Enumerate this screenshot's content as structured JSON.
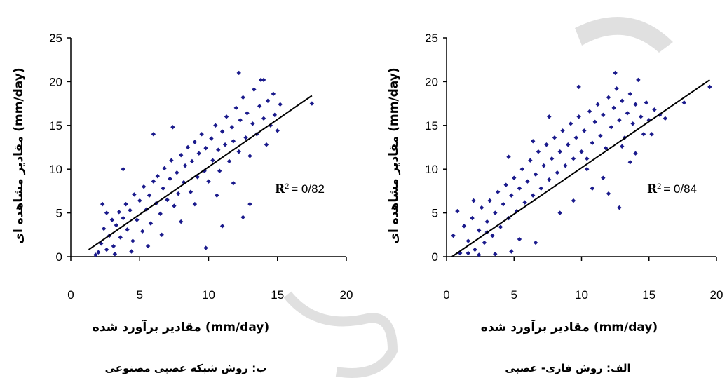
{
  "chart_data": [
    {
      "type": "scatter",
      "caption": "ب: روش شبکه عصبی مصنوعی",
      "xlabel": "مقادیر برآورد شده (mm/day)",
      "ylabel": "مقادیر مشاهده ای (mm/day)",
      "xlim": [
        0,
        20
      ],
      "ylim": [
        0,
        25
      ],
      "x_ticks": [
        "0",
        "5",
        "10",
        "15",
        "20"
      ],
      "y_ticks": [
        "0",
        "5",
        "10",
        "15",
        "20",
        "25"
      ],
      "r2_label": "R",
      "r2_sup": "2",
      "r2_value": "= 0/82",
      "marker_color": "#1a1a8c",
      "trendline": {
        "x": [
          1.3,
          17.5
        ],
        "y": [
          0.8,
          18.4
        ]
      },
      "points": [
        [
          2.0,
          0.5
        ],
        [
          2.2,
          1.5
        ],
        [
          2.4,
          3.2
        ],
        [
          2.6,
          0.8
        ],
        [
          2.8,
          2.4
        ],
        [
          3.0,
          4.2
        ],
        [
          3.1,
          1.2
        ],
        [
          3.3,
          3.6
        ],
        [
          3.5,
          5.1
        ],
        [
          3.6,
          2.2
        ],
        [
          3.8,
          4.4
        ],
        [
          4.0,
          6.0
        ],
        [
          4.1,
          3.1
        ],
        [
          4.3,
          5.3
        ],
        [
          4.5,
          1.8
        ],
        [
          4.6,
          7.1
        ],
        [
          4.8,
          4.2
        ],
        [
          5.0,
          6.4
        ],
        [
          5.2,
          2.9
        ],
        [
          5.3,
          8.0
        ],
        [
          5.5,
          5.4
        ],
        [
          5.7,
          7.0
        ],
        [
          5.8,
          3.8
        ],
        [
          6.0,
          8.6
        ],
        [
          6.2,
          6.1
        ],
        [
          6.3,
          9.2
        ],
        [
          6.5,
          4.9
        ],
        [
          6.7,
          7.8
        ],
        [
          6.8,
          10.1
        ],
        [
          7.0,
          6.5
        ],
        [
          7.2,
          8.9
        ],
        [
          7.3,
          11.0
        ],
        [
          7.5,
          5.8
        ],
        [
          7.7,
          9.6
        ],
        [
          7.8,
          7.2
        ],
        [
          8.0,
          11.6
        ],
        [
          8.2,
          8.5
        ],
        [
          8.3,
          10.4
        ],
        [
          8.5,
          12.5
        ],
        [
          8.7,
          7.4
        ],
        [
          8.8,
          10.9
        ],
        [
          9.0,
          13.1
        ],
        [
          9.2,
          9.1
        ],
        [
          9.3,
          11.8
        ],
        [
          9.5,
          14.0
        ],
        [
          9.7,
          9.8
        ],
        [
          9.8,
          12.4
        ],
        [
          10.0,
          8.6
        ],
        [
          10.2,
          13.5
        ],
        [
          10.3,
          11.0
        ],
        [
          10.5,
          15.0
        ],
        [
          10.7,
          12.2
        ],
        [
          10.8,
          9.8
        ],
        [
          11.0,
          14.3
        ],
        [
          11.2,
          12.8
        ],
        [
          11.3,
          16.0
        ],
        [
          11.5,
          10.9
        ],
        [
          11.7,
          14.8
        ],
        [
          11.8,
          13.2
        ],
        [
          12.0,
          17.0
        ],
        [
          12.2,
          12.0
        ],
        [
          12.3,
          15.6
        ],
        [
          12.5,
          18.2
        ],
        [
          12.7,
          13.6
        ],
        [
          12.8,
          16.4
        ],
        [
          13.0,
          11.5
        ],
        [
          13.2,
          15.2
        ],
        [
          13.3,
          19.1
        ],
        [
          13.5,
          14.0
        ],
        [
          13.7,
          17.2
        ],
        [
          13.8,
          20.2
        ],
        [
          14.0,
          15.8
        ],
        [
          14.2,
          12.8
        ],
        [
          14.3,
          17.8
        ],
        [
          14.5,
          15.0
        ],
        [
          14.7,
          18.6
        ],
        [
          14.8,
          16.2
        ],
        [
          15.0,
          14.4
        ],
        [
          15.2,
          17.4
        ],
        [
          17.5,
          17.5
        ],
        [
          12.2,
          21.0
        ],
        [
          14.0,
          20.2
        ],
        [
          6.0,
          14.0
        ],
        [
          3.8,
          10.0
        ],
        [
          2.3,
          6.0
        ],
        [
          7.4,
          14.8
        ],
        [
          9.8,
          1.0
        ],
        [
          12.5,
          4.5
        ],
        [
          13.0,
          6.0
        ],
        [
          11.0,
          3.5
        ],
        [
          1.8,
          0.2
        ],
        [
          2.6,
          5.0
        ],
        [
          3.2,
          0.3
        ],
        [
          4.4,
          0.6
        ],
        [
          5.6,
          1.2
        ],
        [
          6.6,
          2.5
        ],
        [
          8.0,
          4.0
        ],
        [
          9.0,
          6.0
        ],
        [
          10.6,
          7.0
        ],
        [
          11.8,
          8.4
        ]
      ]
    },
    {
      "type": "scatter",
      "caption": "الف: روش فازی- عصبی",
      "xlabel": "مقادیر برآورد شده (mm/day)",
      "ylabel": "مقادیر مشاهده ای (mm/day)",
      "xlim": [
        0,
        20
      ],
      "ylim": [
        0,
        25
      ],
      "x_ticks": [
        "0",
        "5",
        "10",
        "15",
        "20"
      ],
      "y_ticks": [
        "0",
        "5",
        "10",
        "15",
        "20",
        "25"
      ],
      "r2_label": "R",
      "r2_sup": "2",
      "r2_value": "= 0/84",
      "marker_color": "#1a1a8c",
      "trendline": {
        "x": [
          0.4,
          19.5
        ],
        "y": [
          0.0,
          20.2
        ]
      },
      "points": [
        [
          0.5,
          2.4
        ],
        [
          0.8,
          5.2
        ],
        [
          1.0,
          0.4
        ],
        [
          1.3,
          3.5
        ],
        [
          1.6,
          1.8
        ],
        [
          1.9,
          4.4
        ],
        [
          2.1,
          0.8
        ],
        [
          2.4,
          3.0
        ],
        [
          2.6,
          5.6
        ],
        [
          2.8,
          1.6
        ],
        [
          3.0,
          4.0
        ],
        [
          3.2,
          6.4
        ],
        [
          3.4,
          2.4
        ],
        [
          3.6,
          5.0
        ],
        [
          3.8,
          7.4
        ],
        [
          4.0,
          3.4
        ],
        [
          4.2,
          6.0
        ],
        [
          4.4,
          8.2
        ],
        [
          4.6,
          4.4
        ],
        [
          4.8,
          7.0
        ],
        [
          5.0,
          9.0
        ],
        [
          5.2,
          5.2
        ],
        [
          5.4,
          7.8
        ],
        [
          5.6,
          10.0
        ],
        [
          5.8,
          6.2
        ],
        [
          6.0,
          8.6
        ],
        [
          6.2,
          11.0
        ],
        [
          6.4,
          7.0
        ],
        [
          6.6,
          9.4
        ],
        [
          6.8,
          12.0
        ],
        [
          7.0,
          7.8
        ],
        [
          7.2,
          10.4
        ],
        [
          7.4,
          12.8
        ],
        [
          7.6,
          8.8
        ],
        [
          7.8,
          11.2
        ],
        [
          8.0,
          13.6
        ],
        [
          8.2,
          9.6
        ],
        [
          8.4,
          12.0
        ],
        [
          8.6,
          14.4
        ],
        [
          8.8,
          10.4
        ],
        [
          9.0,
          12.8
        ],
        [
          9.2,
          15.2
        ],
        [
          9.4,
          11.2
        ],
        [
          9.6,
          13.6
        ],
        [
          9.8,
          16.0
        ],
        [
          10.0,
          12.0
        ],
        [
          10.2,
          14.4
        ],
        [
          10.4,
          10.0
        ],
        [
          10.6,
          16.6
        ],
        [
          10.8,
          13.0
        ],
        [
          11.0,
          15.4
        ],
        [
          11.2,
          17.4
        ],
        [
          11.4,
          13.8
        ],
        [
          11.6,
          16.2
        ],
        [
          11.8,
          12.4
        ],
        [
          12.0,
          18.2
        ],
        [
          12.2,
          14.8
        ],
        [
          12.4,
          17.0
        ],
        [
          12.6,
          19.2
        ],
        [
          12.8,
          15.6
        ],
        [
          13.0,
          17.8
        ],
        [
          13.2,
          13.6
        ],
        [
          13.4,
          16.4
        ],
        [
          13.6,
          18.6
        ],
        [
          13.8,
          15.2
        ],
        [
          14.0,
          17.4
        ],
        [
          14.2,
          20.2
        ],
        [
          14.4,
          16.0
        ],
        [
          14.6,
          14.0
        ],
        [
          14.8,
          17.6
        ],
        [
          15.0,
          15.6
        ],
        [
          15.4,
          16.8
        ],
        [
          15.8,
          16.2
        ],
        [
          16.2,
          15.8
        ],
        [
          17.6,
          17.6
        ],
        [
          19.5,
          19.4
        ],
        [
          12.5,
          21.0
        ],
        [
          9.8,
          19.4
        ],
        [
          2.0,
          6.4
        ],
        [
          4.6,
          11.4
        ],
        [
          6.4,
          13.2
        ],
        [
          7.6,
          16.0
        ],
        [
          12.8,
          5.6
        ],
        [
          12.0,
          7.2
        ],
        [
          6.6,
          1.6
        ],
        [
          5.4,
          2.0
        ],
        [
          3.6,
          0.3
        ],
        [
          4.8,
          0.6
        ],
        [
          9.4,
          6.4
        ],
        [
          10.8,
          7.8
        ],
        [
          11.6,
          9.0
        ],
        [
          8.4,
          5.0
        ],
        [
          13.6,
          10.8
        ],
        [
          14.0,
          11.8
        ],
        [
          2.4,
          0.2
        ],
        [
          3.0,
          2.8
        ],
        [
          1.6,
          0.4
        ],
        [
          15.2,
          14.0
        ],
        [
          13.0,
          12.6
        ],
        [
          10.4,
          11.2
        ]
      ]
    }
  ]
}
